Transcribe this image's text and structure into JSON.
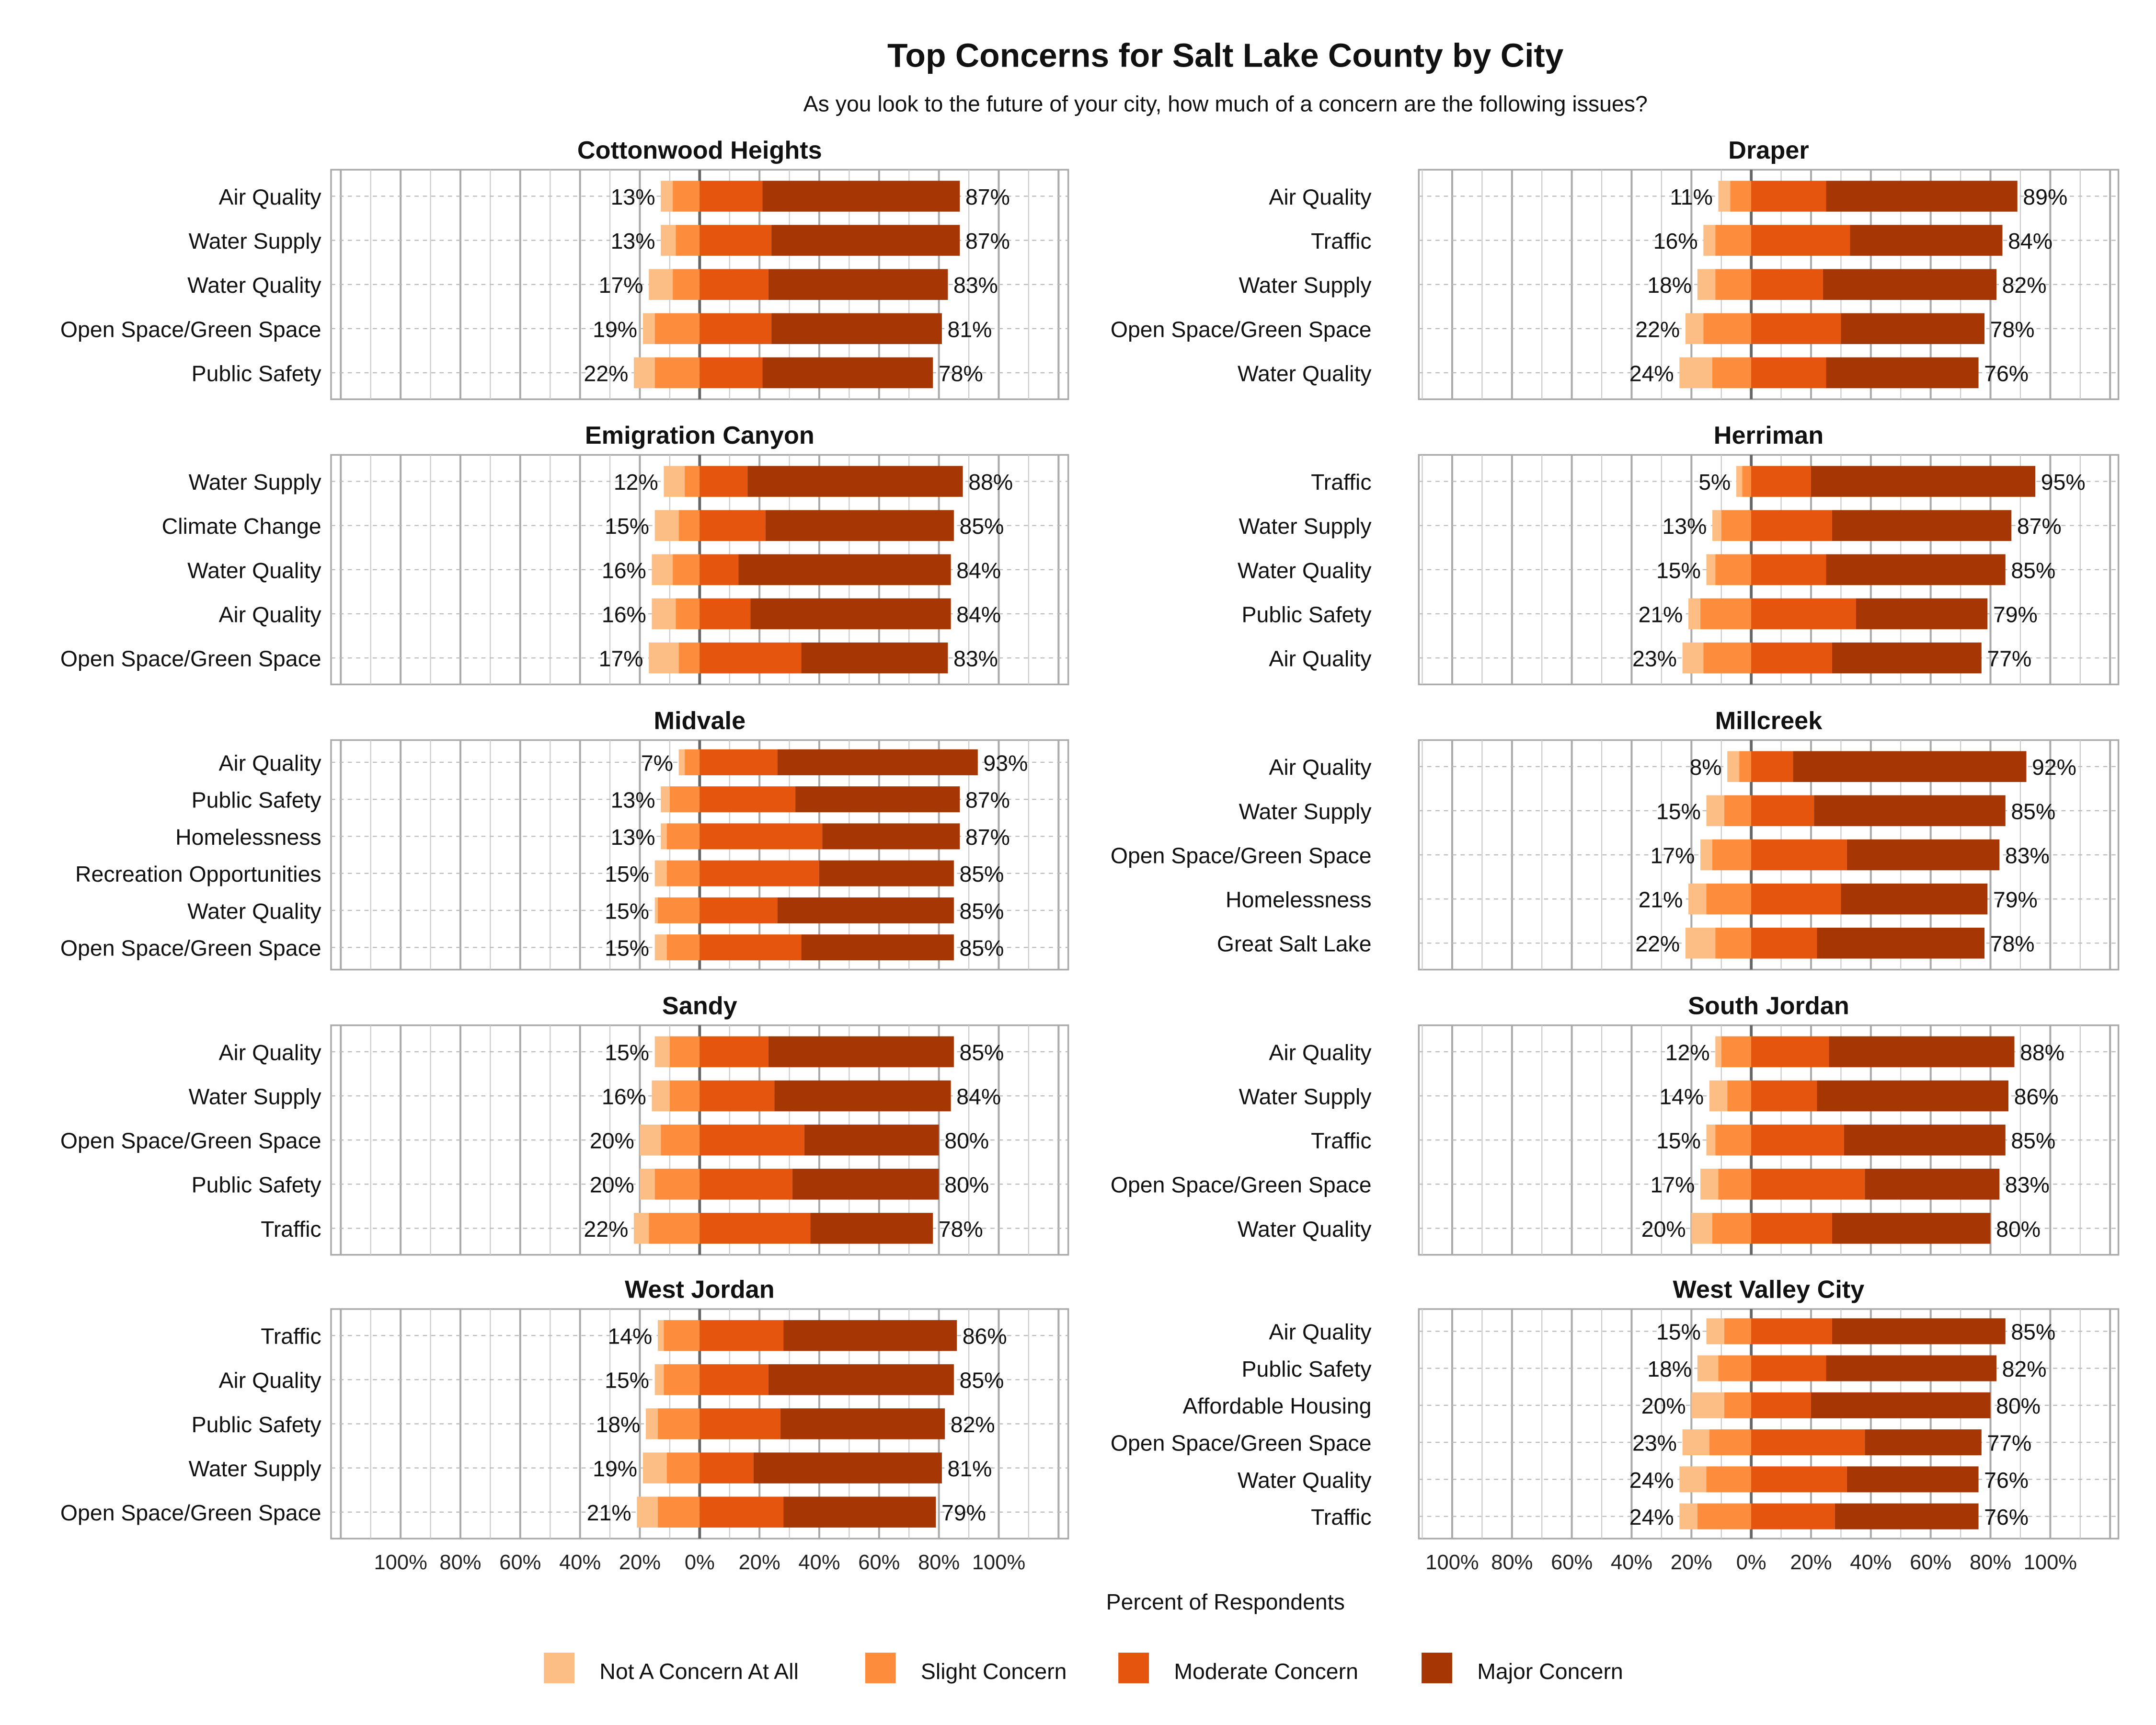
{
  "title": "Top Concerns for Salt Lake County by City",
  "subtitle": "As you look to the future of your city, how much of a concern are the following issues?",
  "xlabel": "Percent of Respondents",
  "colors": {
    "not_a_concern": "#fdbe85",
    "slight": "#fd8d3c",
    "moderate": "#e6550d",
    "major": "#a63603"
  },
  "chart_data": {
    "type": "bar",
    "orientation": "horizontal-diverging-stacked",
    "xlim": [
      -100,
      100
    ],
    "x_ticks": [
      "100%",
      "80%",
      "60%",
      "40%",
      "20%",
      "0%",
      "20%",
      "40%",
      "60%",
      "80%",
      "100%"
    ],
    "legend": {
      "placement": "bottom",
      "entries": [
        "Not A Concern At All",
        "Slight Concern",
        "Moderate Concern",
        "Major Concern"
      ]
    },
    "grid": true,
    "panels": [
      {
        "title": "Cottonwood Heights",
        "rows": [
          {
            "label": "Air Quality",
            "not": 4,
            "slight": 9,
            "moderate": 21,
            "major": 66,
            "left_label": "13%",
            "right_label": "87%"
          },
          {
            "label": "Water Supply",
            "not": 5,
            "slight": 8,
            "moderate": 24,
            "major": 63,
            "left_label": "13%",
            "right_label": "87%"
          },
          {
            "label": "Water Quality",
            "not": 8,
            "slight": 9,
            "moderate": 23,
            "major": 60,
            "left_label": "17%",
            "right_label": "83%"
          },
          {
            "label": "Open Space/Green Space",
            "not": 4,
            "slight": 15,
            "moderate": 24,
            "major": 57,
            "left_label": "19%",
            "right_label": "81%"
          },
          {
            "label": "Public Safety",
            "not": 7,
            "slight": 15,
            "moderate": 21,
            "major": 57,
            "left_label": "22%",
            "right_label": "78%"
          }
        ]
      },
      {
        "title": "Draper",
        "rows": [
          {
            "label": "Air Quality",
            "not": 4,
            "slight": 7,
            "moderate": 25,
            "major": 64,
            "left_label": "11%",
            "right_label": "89%"
          },
          {
            "label": "Traffic",
            "not": 4,
            "slight": 12,
            "moderate": 33,
            "major": 51,
            "left_label": "16%",
            "right_label": "84%"
          },
          {
            "label": "Water Supply",
            "not": 6,
            "slight": 12,
            "moderate": 24,
            "major": 58,
            "left_label": "18%",
            "right_label": "82%"
          },
          {
            "label": "Open Space/Green Space",
            "not": 6,
            "slight": 16,
            "moderate": 30,
            "major": 48,
            "left_label": "22%",
            "right_label": "78%"
          },
          {
            "label": "Water Quality",
            "not": 11,
            "slight": 13,
            "moderate": 25,
            "major": 51,
            "left_label": "24%",
            "right_label": "76%"
          }
        ]
      },
      {
        "title": "Emigration Canyon",
        "rows": [
          {
            "label": "Water Supply",
            "not": 7,
            "slight": 5,
            "moderate": 16,
            "major": 72,
            "left_label": "12%",
            "right_label": "88%"
          },
          {
            "label": "Climate Change",
            "not": 8,
            "slight": 7,
            "moderate": 22,
            "major": 63,
            "left_label": "15%",
            "right_label": "85%"
          },
          {
            "label": "Water Quality",
            "not": 7,
            "slight": 9,
            "moderate": 13,
            "major": 71,
            "left_label": "16%",
            "right_label": "84%"
          },
          {
            "label": "Air Quality",
            "not": 8,
            "slight": 8,
            "moderate": 17,
            "major": 67,
            "left_label": "16%",
            "right_label": "84%"
          },
          {
            "label": "Open Space/Green Space",
            "not": 10,
            "slight": 7,
            "moderate": 34,
            "major": 49,
            "left_label": "17%",
            "right_label": "83%"
          }
        ]
      },
      {
        "title": "Herriman",
        "rows": [
          {
            "label": "Traffic",
            "not": 2,
            "slight": 3,
            "moderate": 20,
            "major": 75,
            "left_label": "5%",
            "right_label": "95%"
          },
          {
            "label": "Water Supply",
            "not": 3,
            "slight": 10,
            "moderate": 27,
            "major": 60,
            "left_label": "13%",
            "right_label": "87%"
          },
          {
            "label": "Water Quality",
            "not": 3,
            "slight": 12,
            "moderate": 25,
            "major": 60,
            "left_label": "15%",
            "right_label": "85%"
          },
          {
            "label": "Public Safety",
            "not": 4,
            "slight": 17,
            "moderate": 35,
            "major": 44,
            "left_label": "21%",
            "right_label": "79%"
          },
          {
            "label": "Air Quality",
            "not": 7,
            "slight": 16,
            "moderate": 27,
            "major": 50,
            "left_label": "23%",
            "right_label": "77%"
          }
        ]
      },
      {
        "title": "Midvale",
        "rows": [
          {
            "label": "Air Quality",
            "not": 2,
            "slight": 5,
            "moderate": 26,
            "major": 67,
            "left_label": "7%",
            "right_label": "93%"
          },
          {
            "label": "Public Safety",
            "not": 3,
            "slight": 10,
            "moderate": 32,
            "major": 55,
            "left_label": "13%",
            "right_label": "87%"
          },
          {
            "label": "Homelessness",
            "not": 2,
            "slight": 11,
            "moderate": 41,
            "major": 46,
            "left_label": "13%",
            "right_label": "87%"
          },
          {
            "label": "Recreation Opportunities",
            "not": 4,
            "slight": 11,
            "moderate": 40,
            "major": 45,
            "left_label": "15%",
            "right_label": "85%"
          },
          {
            "label": "Water Quality",
            "not": 1,
            "slight": 14,
            "moderate": 26,
            "major": 59,
            "left_label": "15%",
            "right_label": "85%"
          },
          {
            "label": "Open Space/Green Space",
            "not": 4,
            "slight": 11,
            "moderate": 34,
            "major": 51,
            "left_label": "15%",
            "right_label": "85%"
          }
        ]
      },
      {
        "title": "Millcreek",
        "rows": [
          {
            "label": "Air Quality",
            "not": 4,
            "slight": 4,
            "moderate": 14,
            "major": 78,
            "left_label": "8%",
            "right_label": "92%"
          },
          {
            "label": "Water Supply",
            "not": 6,
            "slight": 9,
            "moderate": 21,
            "major": 64,
            "left_label": "15%",
            "right_label": "85%"
          },
          {
            "label": "Open Space/Green Space",
            "not": 4,
            "slight": 13,
            "moderate": 32,
            "major": 51,
            "left_label": "17%",
            "right_label": "83%"
          },
          {
            "label": "Homelessness",
            "not": 6,
            "slight": 15,
            "moderate": 30,
            "major": 49,
            "left_label": "21%",
            "right_label": "79%"
          },
          {
            "label": "Great Salt Lake",
            "not": 10,
            "slight": 12,
            "moderate": 22,
            "major": 56,
            "left_label": "22%",
            "right_label": "78%"
          }
        ]
      },
      {
        "title": "Sandy",
        "rows": [
          {
            "label": "Air Quality",
            "not": 5,
            "slight": 10,
            "moderate": 23,
            "major": 62,
            "left_label": "15%",
            "right_label": "85%"
          },
          {
            "label": "Water Supply",
            "not": 6,
            "slight": 10,
            "moderate": 25,
            "major": 59,
            "left_label": "16%",
            "right_label": "84%"
          },
          {
            "label": "Open Space/Green Space",
            "not": 7,
            "slight": 13,
            "moderate": 35,
            "major": 45,
            "left_label": "20%",
            "right_label": "80%"
          },
          {
            "label": "Public Safety",
            "not": 5,
            "slight": 15,
            "moderate": 31,
            "major": 49,
            "left_label": "20%",
            "right_label": "80%"
          },
          {
            "label": "Traffic",
            "not": 5,
            "slight": 17,
            "moderate": 37,
            "major": 41,
            "left_label": "22%",
            "right_label": "78%"
          }
        ]
      },
      {
        "title": "South Jordan",
        "rows": [
          {
            "label": "Air Quality",
            "not": 2,
            "slight": 10,
            "moderate": 26,
            "major": 62,
            "left_label": "12%",
            "right_label": "88%"
          },
          {
            "label": "Water Supply",
            "not": 6,
            "slight": 8,
            "moderate": 22,
            "major": 64,
            "left_label": "14%",
            "right_label": "86%"
          },
          {
            "label": "Traffic",
            "not": 3,
            "slight": 12,
            "moderate": 31,
            "major": 54,
            "left_label": "15%",
            "right_label": "85%"
          },
          {
            "label": "Open Space/Green Space",
            "not": 6,
            "slight": 11,
            "moderate": 38,
            "major": 45,
            "left_label": "17%",
            "right_label": "83%"
          },
          {
            "label": "Water Quality",
            "not": 7,
            "slight": 13,
            "moderate": 27,
            "major": 53,
            "left_label": "20%",
            "right_label": "80%"
          }
        ]
      },
      {
        "title": "West Jordan",
        "rows": [
          {
            "label": "Traffic",
            "not": 2,
            "slight": 12,
            "moderate": 28,
            "major": 58,
            "left_label": "14%",
            "right_label": "86%"
          },
          {
            "label": "Air Quality",
            "not": 3,
            "slight": 12,
            "moderate": 23,
            "major": 62,
            "left_label": "15%",
            "right_label": "85%"
          },
          {
            "label": "Public Safety",
            "not": 4,
            "slight": 14,
            "moderate": 27,
            "major": 55,
            "left_label": "18%",
            "right_label": "82%"
          },
          {
            "label": "Water Supply",
            "not": 8,
            "slight": 11,
            "moderate": 18,
            "major": 63,
            "left_label": "19%",
            "right_label": "81%"
          },
          {
            "label": "Open Space/Green Space",
            "not": 7,
            "slight": 14,
            "moderate": 28,
            "major": 51,
            "left_label": "21%",
            "right_label": "79%"
          }
        ]
      },
      {
        "title": "West Valley City",
        "rows": [
          {
            "label": "Air Quality",
            "not": 6,
            "slight": 9,
            "moderate": 27,
            "major": 58,
            "left_label": "15%",
            "right_label": "85%"
          },
          {
            "label": "Public Safety",
            "not": 7,
            "slight": 11,
            "moderate": 25,
            "major": 57,
            "left_label": "18%",
            "right_label": "82%"
          },
          {
            "label": "Affordable Housing",
            "not": 11,
            "slight": 9,
            "moderate": 20,
            "major": 60,
            "left_label": "20%",
            "right_label": "80%"
          },
          {
            "label": "Open Space/Green Space",
            "not": 9,
            "slight": 14,
            "moderate": 38,
            "major": 39,
            "left_label": "23%",
            "right_label": "77%"
          },
          {
            "label": "Water Quality",
            "not": 9,
            "slight": 15,
            "moderate": 32,
            "major": 44,
            "left_label": "24%",
            "right_label": "76%"
          },
          {
            "label": "Traffic",
            "not": 6,
            "slight": 18,
            "moderate": 28,
            "major": 48,
            "left_label": "24%",
            "right_label": "76%"
          }
        ]
      }
    ]
  }
}
